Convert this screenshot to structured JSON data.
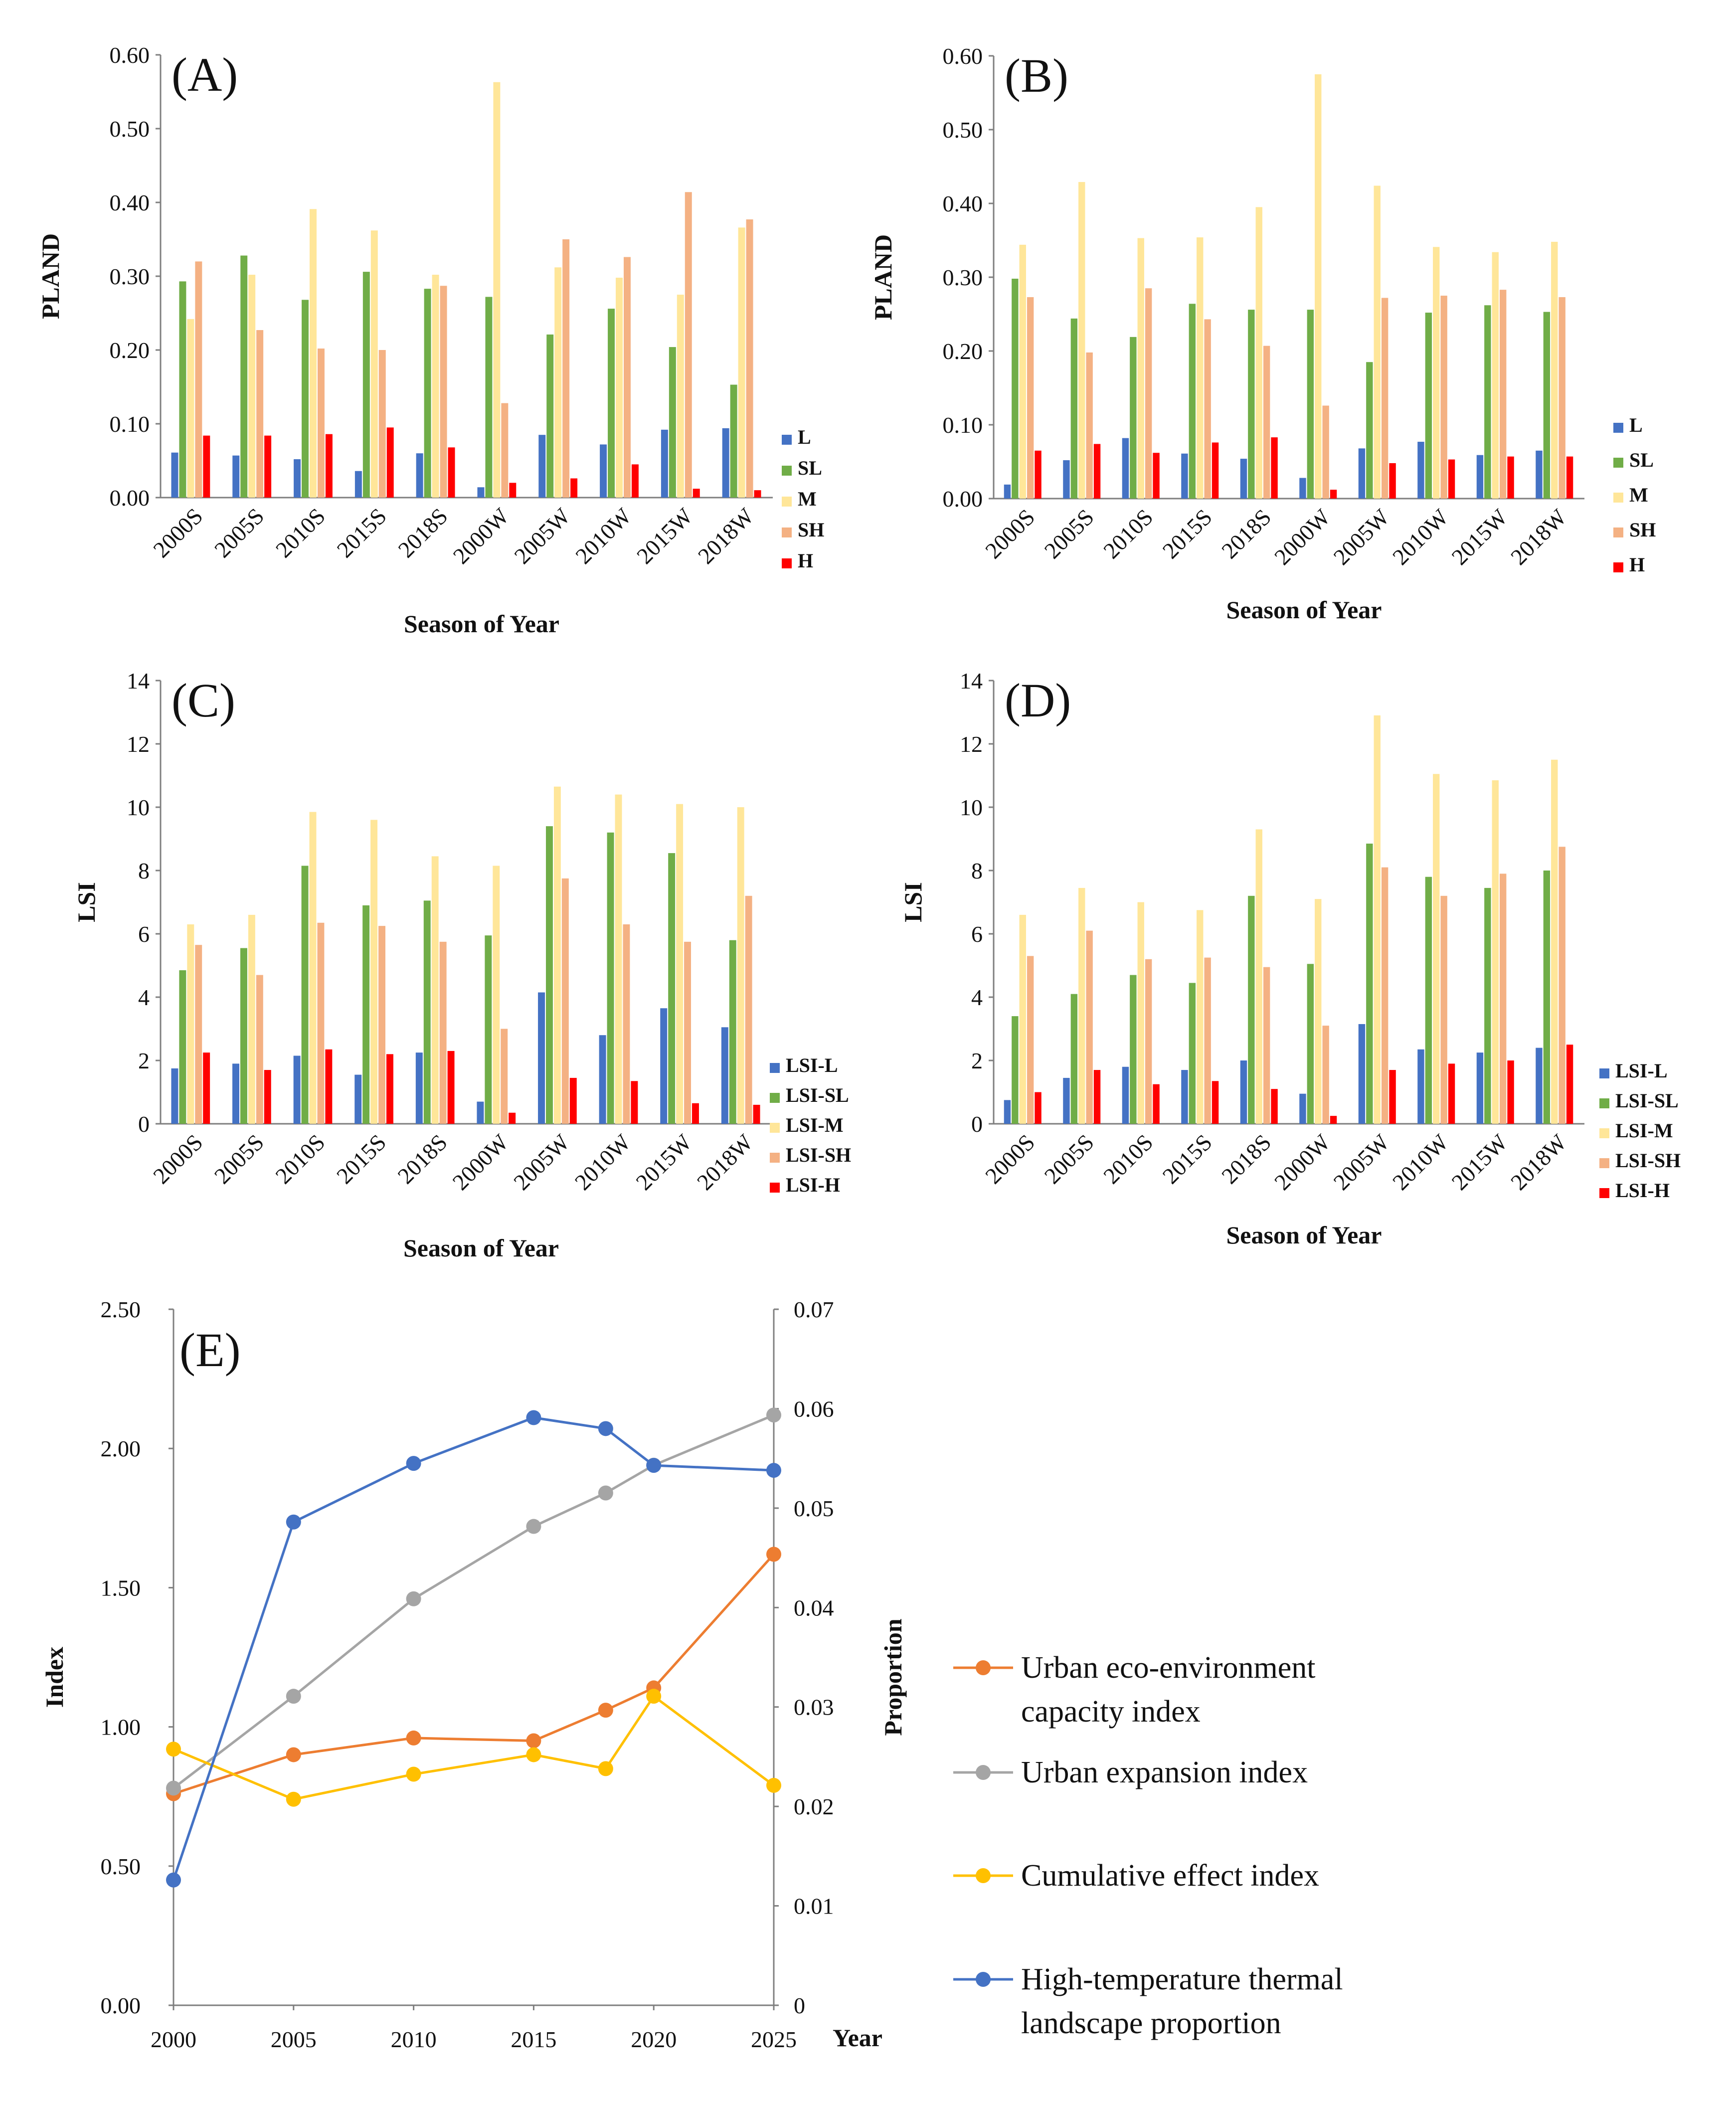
{
  "colors": {
    "L": "#4472C4",
    "SL": "#70AD47",
    "M": "#FFE699",
    "SH": "#F4B183",
    "H": "#FF0000",
    "eco": "#ED7D31",
    "expansion": "#A5A5A5",
    "cumulative": "#FFC000",
    "hightemp": "#4472C4"
  },
  "chart_data": [
    {
      "id": "A",
      "type": "bar",
      "panel_label": "(A)",
      "ylabel": "PLAND",
      "xlabel": "Season of  Year",
      "ylim": [
        0,
        0.6
      ],
      "yticks": [
        "0.00",
        "0.10",
        "0.20",
        "0.30",
        "0.40",
        "0.50",
        "0.60"
      ],
      "categories": [
        "2000S",
        "2005S",
        "2010S",
        "2015S",
        "2018S",
        "2000W",
        "2005W",
        "2010W",
        "2015W",
        "2018W"
      ],
      "series": [
        {
          "name": "L",
          "key": "L",
          "values": [
            0.061,
            0.057,
            0.052,
            0.036,
            0.06,
            0.014,
            0.085,
            0.072,
            0.092,
            0.094
          ]
        },
        {
          "name": "SL",
          "key": "SL",
          "values": [
            0.293,
            0.328,
            0.268,
            0.306,
            0.283,
            0.272,
            0.221,
            0.256,
            0.204,
            0.153
          ]
        },
        {
          "name": "M",
          "key": "M",
          "values": [
            0.242,
            0.302,
            0.391,
            0.362,
            0.302,
            0.563,
            0.312,
            0.298,
            0.275,
            0.366
          ]
        },
        {
          "name": "SH",
          "key": "SH",
          "values": [
            0.32,
            0.227,
            0.202,
            0.2,
            0.287,
            0.128,
            0.35,
            0.326,
            0.414,
            0.377
          ]
        },
        {
          "name": "H",
          "key": "H",
          "values": [
            0.084,
            0.084,
            0.086,
            0.095,
            0.068,
            0.02,
            0.026,
            0.045,
            0.012,
            0.01
          ]
        }
      ]
    },
    {
      "id": "B",
      "type": "bar",
      "panel_label": "(B)",
      "ylabel": "PLAND",
      "xlabel": "Season of Year",
      "ylim": [
        0,
        0.6
      ],
      "yticks": [
        "0.00",
        "0.10",
        "0.20",
        "0.30",
        "0.40",
        "0.50",
        "0.60"
      ],
      "categories": [
        "2000S",
        "2005S",
        "2010S",
        "2015S",
        "2018S",
        "2000W",
        "2005W",
        "2010W",
        "2015W",
        "2018W"
      ],
      "series": [
        {
          "name": "L",
          "key": "L",
          "values": [
            0.019,
            0.052,
            0.082,
            0.061,
            0.054,
            0.028,
            0.068,
            0.077,
            0.059,
            0.065
          ]
        },
        {
          "name": "SL",
          "key": "SL",
          "values": [
            0.298,
            0.244,
            0.219,
            0.264,
            0.256,
            0.256,
            0.185,
            0.252,
            0.262,
            0.253
          ]
        },
        {
          "name": "M",
          "key": "M",
          "values": [
            0.344,
            0.429,
            0.353,
            0.354,
            0.395,
            0.575,
            0.424,
            0.341,
            0.334,
            0.348
          ]
        },
        {
          "name": "SH",
          "key": "SH",
          "values": [
            0.273,
            0.198,
            0.285,
            0.243,
            0.207,
            0.126,
            0.272,
            0.275,
            0.283,
            0.273
          ]
        },
        {
          "name": "H",
          "key": "H",
          "values": [
            0.065,
            0.074,
            0.062,
            0.076,
            0.083,
            0.012,
            0.048,
            0.053,
            0.057,
            0.057
          ]
        }
      ]
    },
    {
      "id": "C",
      "type": "bar",
      "panel_label": "(C)",
      "ylabel": "LSI",
      "xlabel": "Season of  Year",
      "ylim": [
        0,
        14
      ],
      "yticks": [
        "0",
        "2",
        "4",
        "6",
        "8",
        "10",
        "12",
        "14"
      ],
      "categories": [
        "2000S",
        "2005S",
        "2010S",
        "2015S",
        "2018S",
        "2000W",
        "2005W",
        "2010W",
        "2015W",
        "2018W"
      ],
      "series": [
        {
          "name": "LSI-L",
          "key": "L",
          "values": [
            1.75,
            1.9,
            2.15,
            1.55,
            2.25,
            0.7,
            4.15,
            2.8,
            3.65,
            3.05
          ]
        },
        {
          "name": "LSI-SL",
          "key": "SL",
          "values": [
            4.85,
            5.55,
            8.15,
            6.9,
            7.05,
            5.95,
            9.4,
            9.2,
            8.55,
            5.8
          ]
        },
        {
          "name": "LSI-M",
          "key": "M",
          "values": [
            6.3,
            6.6,
            9.85,
            9.6,
            8.45,
            8.15,
            10.65,
            10.4,
            10.1,
            10.0
          ]
        },
        {
          "name": "LSI-SH",
          "key": "SH",
          "values": [
            5.65,
            4.7,
            6.35,
            6.25,
            5.75,
            3.0,
            7.75,
            6.3,
            5.75,
            7.2
          ]
        },
        {
          "name": "LSI-H",
          "key": "H",
          "values": [
            2.25,
            1.7,
            2.35,
            2.2,
            2.3,
            0.35,
            1.45,
            1.35,
            0.65,
            0.6
          ]
        }
      ]
    },
    {
      "id": "D",
      "type": "bar",
      "panel_label": "(D)",
      "ylabel": "LSI",
      "xlabel": "Season of Year",
      "ylim": [
        0,
        14
      ],
      "yticks": [
        "0",
        "2",
        "4",
        "6",
        "8",
        "10",
        "12",
        "14"
      ],
      "categories": [
        "2000S",
        "2005S",
        "2010S",
        "2015S",
        "2018S",
        "2000W",
        "2005W",
        "2010W",
        "2015W",
        "2018W"
      ],
      "series": [
        {
          "name": "LSI-L",
          "key": "L",
          "values": [
            0.75,
            1.45,
            1.8,
            1.7,
            2.0,
            0.95,
            3.15,
            2.35,
            2.25,
            2.4
          ]
        },
        {
          "name": "LSI-SL",
          "key": "SL",
          "values": [
            3.4,
            4.1,
            4.7,
            4.45,
            7.2,
            5.05,
            8.85,
            7.8,
            7.45,
            8.0
          ]
        },
        {
          "name": "LSI-M",
          "key": "M",
          "values": [
            6.6,
            7.45,
            7.0,
            6.75,
            9.3,
            7.1,
            12.9,
            11.05,
            10.85,
            11.5
          ]
        },
        {
          "name": "LSI-SH",
          "key": "SH",
          "values": [
            5.3,
            6.1,
            5.2,
            5.25,
            4.95,
            3.1,
            8.1,
            7.2,
            7.9,
            8.75
          ]
        },
        {
          "name": "LSI-H",
          "key": "H",
          "values": [
            1.0,
            1.7,
            1.25,
            1.35,
            1.1,
            0.25,
            1.7,
            1.9,
            2.0,
            2.5
          ]
        }
      ]
    },
    {
      "id": "E",
      "type": "line",
      "panel_label": "(E)",
      "ylabel": "Index",
      "y2label": "Proportion",
      "xlabel": "Year",
      "x": [
        2000,
        2005,
        2010,
        2015,
        2018,
        2020,
        2025
      ],
      "xticks": [
        "2000",
        "2005",
        "2010",
        "2015",
        "2020",
        "2025"
      ],
      "ylim": [
        0,
        2.5
      ],
      "yticks": [
        "0.00",
        "0.50",
        "1.00",
        "1.50",
        "2.00",
        "2.50"
      ],
      "y2lim": [
        0,
        0.07
      ],
      "y2ticks": [
        "0",
        "0.01",
        "0.02",
        "0.03",
        "0.04",
        "0.05",
        "0.06",
        "0.07"
      ],
      "series": [
        {
          "name_lines": [
            "Urban eco-environment",
            "capacity index"
          ],
          "key": "eco",
          "axis": "left",
          "values": [
            0.76,
            0.9,
            0.96,
            0.95,
            1.06,
            1.14,
            1.62
          ]
        },
        {
          "name_lines": [
            "Urban expansion index"
          ],
          "key": "expansion",
          "axis": "left",
          "values": [
            0.78,
            1.11,
            1.46,
            1.72,
            1.84,
            1.94,
            2.12
          ]
        },
        {
          "name_lines": [
            "Cumulative effect index"
          ],
          "key": "cumulative",
          "axis": "left",
          "values": [
            0.92,
            0.74,
            0.83,
            0.9,
            0.85,
            1.11,
            0.79
          ]
        },
        {
          "name_lines": [
            "High-temperature thermal",
            "landscape proportion"
          ],
          "key": "hightemp",
          "axis": "right",
          "values": [
            0.0126,
            0.0486,
            0.0545,
            0.0591,
            0.058,
            0.0543,
            0.0538
          ]
        }
      ]
    }
  ]
}
